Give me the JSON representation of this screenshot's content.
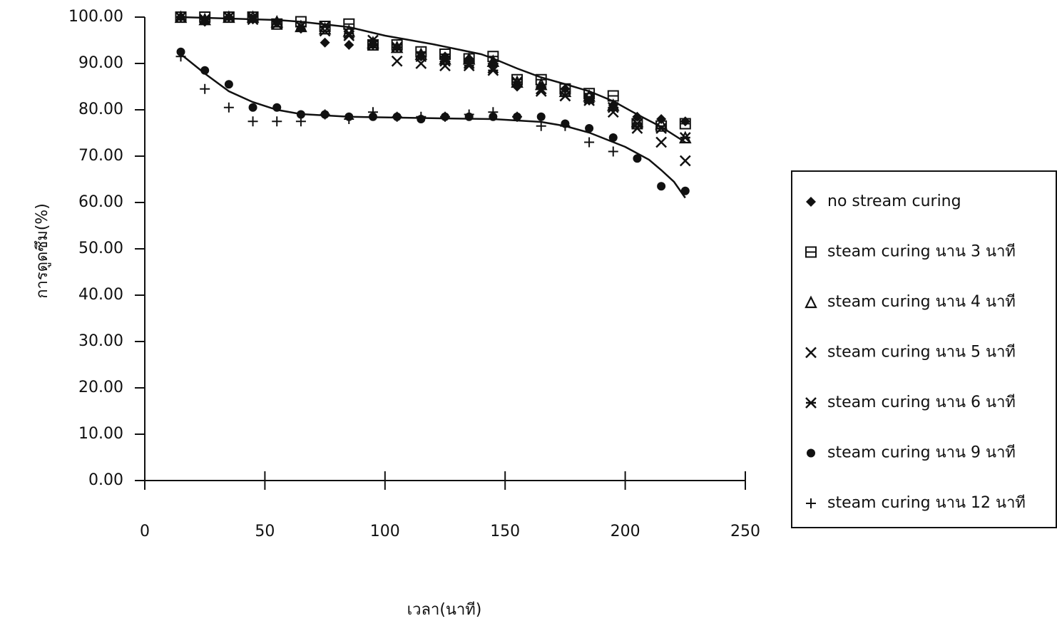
{
  "chart_data": {
    "type": "scatter",
    "x_label": "เวลา(นาที)",
    "y_label": "การดูดซึม(%)",
    "x": [
      15,
      25,
      35,
      45,
      55,
      65,
      75,
      85,
      95,
      105,
      115,
      125,
      135,
      145,
      155,
      165,
      175,
      185,
      195,
      205,
      215,
      225
    ],
    "xlim": [
      0,
      250
    ],
    "xticks": [
      0,
      50,
      100,
      150,
      200,
      250
    ],
    "ylim": [
      0,
      100
    ],
    "yticks": [
      {
        "value": 0,
        "label": "0.00"
      },
      {
        "value": 10,
        "label": "10.00"
      },
      {
        "value": 20,
        "label": "20.00"
      },
      {
        "value": 30,
        "label": "30.00"
      },
      {
        "value": 40,
        "label": "40.00"
      },
      {
        "value": 50,
        "label": "50.00"
      },
      {
        "value": 60,
        "label": "60.00"
      },
      {
        "value": 70,
        "label": "70.00"
      },
      {
        "value": 80,
        "label": "80.00"
      },
      {
        "value": 90,
        "label": "90.00"
      },
      {
        "value": 100,
        "label": "100.00"
      }
    ],
    "series": [
      {
        "name": "no stream  curing",
        "color": "#111111",
        "marker": "diamond",
        "values": [
          100,
          99,
          100,
          99.5,
          99,
          97.5,
          94.5,
          94,
          94,
          93.5,
          91.5,
          91.5,
          91,
          90,
          85,
          85,
          84.5,
          82,
          81,
          78.5,
          78,
          77.5
        ]
      },
      {
        "name": "steam curing  นาน 3  นาที",
        "color": "#111111",
        "marker": "square",
        "values": [
          100,
          100,
          100,
          100,
          98.5,
          99,
          98,
          98.5,
          94,
          94,
          92.5,
          92,
          91,
          91.5,
          86.5,
          86.5,
          84.5,
          83.5,
          83,
          77,
          76.5,
          77
        ]
      },
      {
        "name": "steam curing  นาน 4  นาที",
        "color": "#111111",
        "marker": "triangle",
        "values": [
          100,
          99.5,
          100,
          100,
          99,
          98,
          97.5,
          97,
          94.5,
          93.5,
          92,
          91,
          91,
          90.5,
          86,
          85.5,
          84,
          83,
          81,
          77.5,
          77,
          74
        ]
      },
      {
        "name": "steam curing  นาน 5  นาที",
        "color": "#111111",
        "marker": "x",
        "values": [
          100,
          99.5,
          100,
          100,
          98.5,
          98,
          97,
          96,
          94,
          90.5,
          90,
          89.5,
          90,
          89,
          86,
          84,
          83,
          82,
          79.5,
          76,
          73,
          69
        ]
      },
      {
        "name": "steam curing  นาน 6  นาที",
        "color": "#111111",
        "marker": "asterisk",
        "values": [
          100,
          99.5,
          100,
          99.5,
          98.5,
          98,
          98,
          96.5,
          95,
          93.5,
          91.5,
          90.5,
          89.5,
          88.5,
          86,
          84.5,
          83,
          82.5,
          80.5,
          77,
          76,
          74
        ]
      },
      {
        "name": "steam curing  นาน 9  นาที",
        "color": "#111111",
        "marker": "dot",
        "values": [
          92.5,
          88.5,
          85.5,
          80.5,
          80.5,
          79,
          79,
          78.5,
          78.5,
          78.5,
          78,
          78.5,
          78.5,
          78.5,
          78.5,
          78.5,
          77,
          76,
          74,
          69.5,
          63.5,
          62.5
        ]
      },
      {
        "name": "steam curing  นาน 12 นาที",
        "color": "#111111",
        "marker": "plus",
        "values": [
          91.5,
          84.5,
          80.5,
          77.5,
          77.5,
          77.5,
          79,
          78,
          79.5,
          78.5,
          78.5,
          78.5,
          79,
          79.5,
          78.5,
          76.5,
          76.5,
          73,
          71,
          null,
          null,
          null
        ]
      }
    ],
    "legend": "right"
  }
}
